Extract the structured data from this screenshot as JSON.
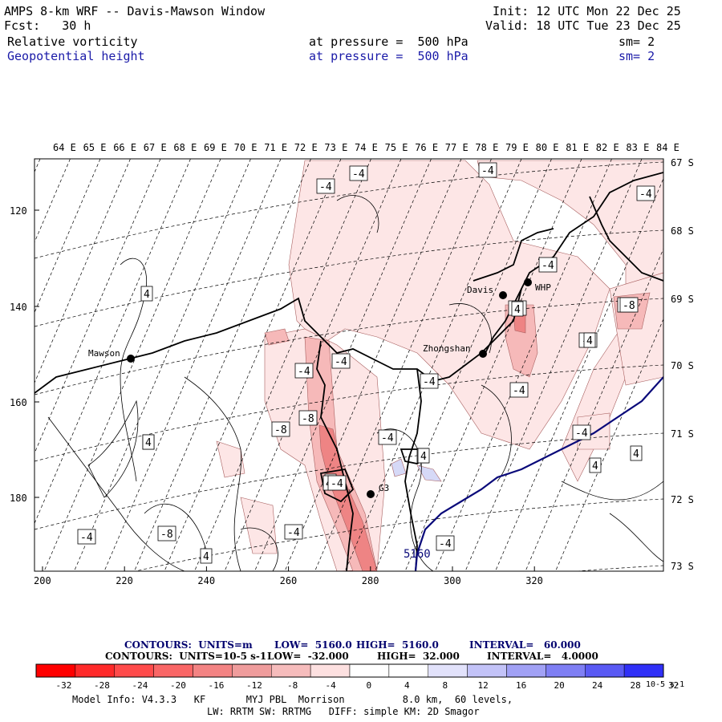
{
  "header": {
    "title": "AMPS 8-km WRF -- Davis-Mawson Window",
    "init": "Init: 12 UTC Mon 22 Dec 25",
    "fcst": "Fcst:   30 h",
    "valid": "Valid: 18 UTC Tue 23 Dec 25",
    "field1": {
      "name": "Relative vorticity",
      "level": "at pressure =  500 hPa",
      "smooth": "sm= 2"
    },
    "field2": {
      "name": "Geopotential height",
      "level": "at pressure =  500 hPa",
      "smooth": "sm= 2"
    }
  },
  "map": {
    "longitude_labels": [
      "64 E",
      "65 E",
      "66 E",
      "67 E",
      "68 E",
      "69 E",
      "70 E",
      "71 E",
      "72 E",
      "73 E",
      "74 E",
      "75 E",
      "76 E",
      "77 E",
      "78 E",
      "79 E",
      "80 E",
      "81 E",
      "82 E",
      "83 E",
      "84 E"
    ],
    "latitude_labels": [
      "67 S",
      "68 S",
      "69 S",
      "70 S",
      "71 S",
      "72 S",
      "73 S"
    ],
    "x_ticks": [
      "200",
      "220",
      "240",
      "260",
      "280",
      "300",
      "320"
    ],
    "y_ticks": [
      "120",
      "140",
      "160",
      "180"
    ],
    "stations": [
      {
        "name": "Mawson"
      },
      {
        "name": "Davis"
      },
      {
        "name": "WHP"
      },
      {
        "name": "Zhongshan"
      },
      {
        "name": "G3"
      }
    ],
    "contour_labels": [
      "-4",
      "-4",
      "-4",
      "-4",
      "-4",
      "4",
      "-4",
      "-4",
      "-8",
      "-4",
      "-8",
      "-4",
      "-4",
      "-4",
      "-8",
      "4",
      "-4",
      "-4",
      "4",
      "4",
      "-4",
      "-4",
      "4",
      "-8",
      "-4",
      "4",
      "4",
      "4",
      "4",
      "4",
      "-4",
      "4",
      "-8",
      "4",
      "5160"
    ],
    "height_contour_value": "5160",
    "colors": {
      "coast": "#000000",
      "height_contour": "#0a0a7a",
      "shade_light": "#fde6e6",
      "shade_mid": "#f6b9b9",
      "shade_dark": "#ee8484",
      "shade_blue": "#d6d9f7"
    }
  },
  "contour_info": {
    "line1": {
      "units": "CONTOURS:  UNITS=m",
      "low": "LOW=  5160.0",
      "high": "HIGH=  5160.0",
      "interval": "INTERVAL=   60.000"
    },
    "line2": {
      "units": "CONTOURS:  UNITS=10-5 s-1",
      "low": "LOW=  -32.000",
      "high": "HIGH=  32.000",
      "interval": "INTERVAL=   4.0000"
    }
  },
  "colorbar": {
    "labels": [
      "-32",
      "-28",
      "-24",
      "-20",
      "-16",
      "-12",
      "-8",
      "-4",
      "0",
      "4",
      "8",
      "12",
      "16",
      "20",
      "24",
      "28",
      "32"
    ],
    "unit": "10-5 s-1",
    "colors": [
      "#ff0000",
      "#ff2a2a",
      "#ff4b4b",
      "#f96666",
      "#f38383",
      "#ef9c9c",
      "#f6bcbc",
      "#fde0e0",
      "#ffffff",
      "#ffffff",
      "#e2e2fb",
      "#c3c3f8",
      "#a1a1f5",
      "#7f7ff4",
      "#5a5af4",
      "#3030f7",
      "#0000ff"
    ]
  },
  "model_info": {
    "line1": "Model Info: V4.3.3   KF       MYJ PBL  Morrison          8.0 km,  60 levels,",
    "line2": "LW: RRTM SW: RRTMG   DIFF: simple KM: 2D Smagor"
  }
}
